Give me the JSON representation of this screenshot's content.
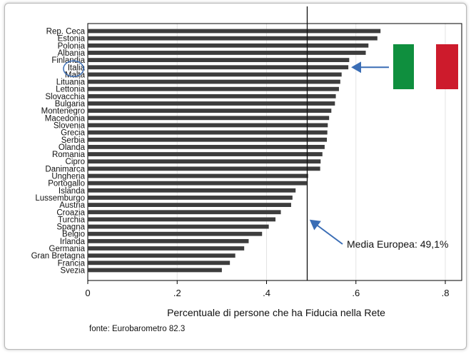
{
  "chart_data": {
    "type": "bar",
    "orientation": "horizontal",
    "categories": [
      "Rep. Ceca",
      "Estonia",
      "Polonia",
      "Albania",
      "Finlandia",
      "Italia",
      "Malta",
      "Lituania",
      "Lettonia",
      "Slovacchia",
      "Bulgaria",
      "Montenegro",
      "Macedonia",
      "Slovenia",
      "Grecia",
      "Serbia",
      "Olanda",
      "Romania",
      "Cipro",
      "Danimarca",
      "Ungheria",
      "Portogallo",
      "Islanda",
      "Lussemburgo",
      "Austria",
      "Croazia",
      "Turchia",
      "Spagna",
      "Belgio",
      "Irlanda",
      "Germania",
      "Gran Bretagna",
      "Francia",
      "Svezia"
    ],
    "values": [
      0.655,
      0.648,
      0.628,
      0.622,
      0.585,
      0.583,
      0.568,
      0.565,
      0.562,
      0.555,
      0.553,
      0.545,
      0.54,
      0.537,
      0.536,
      0.535,
      0.53,
      0.525,
      0.521,
      0.52,
      0.493,
      0.49,
      0.465,
      0.458,
      0.455,
      0.432,
      0.42,
      0.405,
      0.39,
      0.36,
      0.35,
      0.33,
      0.318,
      0.3
    ],
    "xlabel": "Percentuale di persone che ha Fiducia nella Rete",
    "xlim": [
      0,
      0.8
    ],
    "xticks": [
      0,
      0.2,
      0.4,
      0.6,
      0.8
    ],
    "xtick_labels": [
      "0",
      ".2",
      ".4",
      ".6",
      ".8"
    ],
    "grid": true,
    "reference_line": {
      "value": 0.491,
      "label": "Media Europea: 49,1%"
    },
    "highlight": {
      "category": "Italia"
    },
    "source": "fonte: Eurobarometro 82.3",
    "bar_color": "#3d3d3d",
    "flag_colors": [
      "#0f8f3e",
      "#ffffff",
      "#cd1b2c"
    ]
  }
}
